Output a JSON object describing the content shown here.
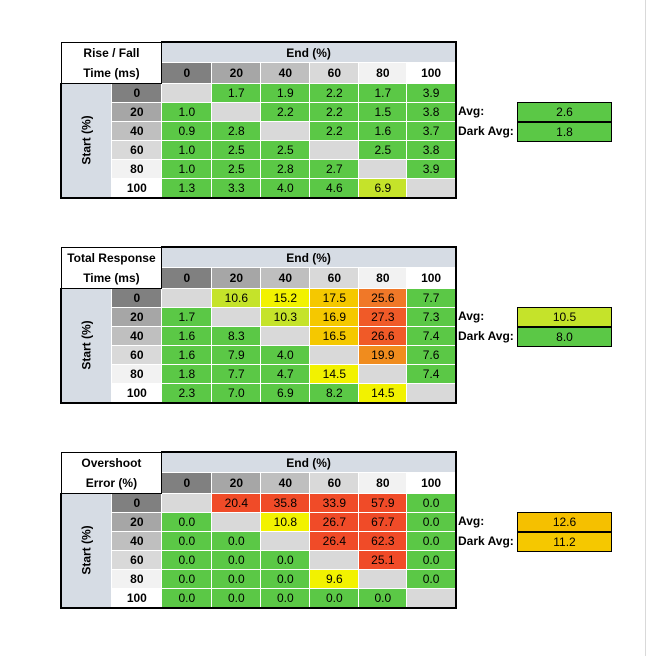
{
  "tables": [
    {
      "title_lines": [
        "Rise / Fall",
        "Time (ms)"
      ],
      "end_label": "End (%)",
      "start_label": "Start (%)",
      "columns": [
        "0",
        "20",
        "40",
        "60",
        "80",
        "100"
      ],
      "rows": [
        {
          "label": "0",
          "cells": [
            "",
            "1.7",
            "1.9",
            "2.2",
            "1.7",
            "3.9"
          ]
        },
        {
          "label": "20",
          "cells": [
            "1.0",
            "",
            "2.2",
            "2.2",
            "1.5",
            "3.8"
          ]
        },
        {
          "label": "40",
          "cells": [
            "0.9",
            "2.8",
            "",
            "2.2",
            "1.6",
            "3.7"
          ]
        },
        {
          "label": "60",
          "cells": [
            "1.0",
            "2.5",
            "2.5",
            "",
            "2.5",
            "3.8"
          ]
        },
        {
          "label": "80",
          "cells": [
            "1.0",
            "2.5",
            "2.8",
            "2.7",
            "",
            "3.9"
          ]
        },
        {
          "label": "100",
          "cells": [
            "1.3",
            "3.3",
            "4.0",
            "4.6",
            "6.9",
            ""
          ]
        }
      ],
      "cell_colors": [
        [
          "#d9d9d9",
          "#5bc846",
          "#5bc846",
          "#5bc846",
          "#5bc846",
          "#5bc846"
        ],
        [
          "#5bc846",
          "#d9d9d9",
          "#5bc846",
          "#5bc846",
          "#5bc846",
          "#5bc846"
        ],
        [
          "#5bc846",
          "#5bc846",
          "#d9d9d9",
          "#5bc846",
          "#5bc846",
          "#5bc846"
        ],
        [
          "#5bc846",
          "#5bc846",
          "#5bc846",
          "#d9d9d9",
          "#5bc846",
          "#5bc846"
        ],
        [
          "#5bc846",
          "#5bc846",
          "#5bc846",
          "#5bc846",
          "#d9d9d9",
          "#5bc846"
        ],
        [
          "#5bc846",
          "#5bc846",
          "#5bc846",
          "#5bc846",
          "#c5e32a",
          "#d9d9d9"
        ]
      ],
      "avg_label": "Avg:",
      "avg_value": "2.6",
      "avg_color": "#5bc846",
      "dark_avg_label": "Dark Avg:",
      "dark_avg_value": "1.8",
      "dark_avg_color": "#5bc846"
    },
    {
      "title_lines": [
        "Total Response",
        "Time (ms)"
      ],
      "end_label": "End (%)",
      "start_label": "Start (%)",
      "columns": [
        "0",
        "20",
        "40",
        "60",
        "80",
        "100"
      ],
      "rows": [
        {
          "label": "0",
          "cells": [
            "",
            "10.6",
            "15.2",
            "17.5",
            "25.6",
            "7.7"
          ]
        },
        {
          "label": "20",
          "cells": [
            "1.7",
            "",
            "10.3",
            "16.9",
            "27.3",
            "7.3"
          ]
        },
        {
          "label": "40",
          "cells": [
            "1.6",
            "8.3",
            "",
            "16.5",
            "26.6",
            "7.4"
          ]
        },
        {
          "label": "60",
          "cells": [
            "1.6",
            "7.9",
            "4.0",
            "",
            "19.9",
            "7.6"
          ]
        },
        {
          "label": "80",
          "cells": [
            "1.8",
            "7.7",
            "4.7",
            "14.5",
            "",
            "7.4"
          ]
        },
        {
          "label": "100",
          "cells": [
            "2.3",
            "7.0",
            "6.9",
            "8.2",
            "14.5",
            ""
          ]
        }
      ],
      "cell_colors": [
        [
          "#d9d9d9",
          "#c5e32a",
          "#f2f200",
          "#f5c800",
          "#f07828",
          "#5bc846"
        ],
        [
          "#5bc846",
          "#d9d9d9",
          "#c5e32a",
          "#f5c800",
          "#f05a28",
          "#5bc846"
        ],
        [
          "#5bc846",
          "#5bc846",
          "#d9d9d9",
          "#f5c800",
          "#f05a28",
          "#5bc846"
        ],
        [
          "#5bc846",
          "#5bc846",
          "#5bc846",
          "#d9d9d9",
          "#f08c1e",
          "#5bc846"
        ],
        [
          "#5bc846",
          "#5bc846",
          "#5bc846",
          "#f2f200",
          "#d9d9d9",
          "#5bc846"
        ],
        [
          "#5bc846",
          "#5bc846",
          "#5bc846",
          "#5bc846",
          "#f2f200",
          "#d9d9d9"
        ]
      ],
      "avg_label": "Avg:",
      "avg_value": "10.5",
      "avg_color": "#c5e32a",
      "dark_avg_label": "Dark Avg:",
      "dark_avg_value": "8.0",
      "dark_avg_color": "#5bc846"
    },
    {
      "title_lines": [
        "Overshoot",
        "Error (%)"
      ],
      "end_label": "End (%)",
      "start_label": "Start (%)",
      "columns": [
        "0",
        "20",
        "40",
        "60",
        "80",
        "100"
      ],
      "rows": [
        {
          "label": "0",
          "cells": [
            "",
            "20.4",
            "35.8",
            "33.9",
            "57.9",
            "0.0"
          ]
        },
        {
          "label": "20",
          "cells": [
            "0.0",
            "",
            "10.8",
            "26.7",
            "67.7",
            "0.0"
          ]
        },
        {
          "label": "40",
          "cells": [
            "0.0",
            "0.0",
            "",
            "26.4",
            "62.3",
            "0.0"
          ]
        },
        {
          "label": "60",
          "cells": [
            "0.0",
            "0.0",
            "0.0",
            "",
            "25.1",
            "0.0"
          ]
        },
        {
          "label": "80",
          "cells": [
            "0.0",
            "0.0",
            "0.0",
            "9.6",
            "",
            "0.0"
          ]
        },
        {
          "label": "100",
          "cells": [
            "0.0",
            "0.0",
            "0.0",
            "0.0",
            "0.0",
            ""
          ]
        }
      ],
      "cell_colors": [
        [
          "#d9d9d9",
          "#f04b28",
          "#f04b28",
          "#f04b28",
          "#f04b28",
          "#5bc846"
        ],
        [
          "#5bc846",
          "#d9d9d9",
          "#f2f200",
          "#f04b28",
          "#f04b28",
          "#5bc846"
        ],
        [
          "#5bc846",
          "#5bc846",
          "#d9d9d9",
          "#f04b28",
          "#f04b28",
          "#5bc846"
        ],
        [
          "#5bc846",
          "#5bc846",
          "#5bc846",
          "#d9d9d9",
          "#f04b28",
          "#5bc846"
        ],
        [
          "#5bc846",
          "#5bc846",
          "#5bc846",
          "#f2f200",
          "#d9d9d9",
          "#5bc846"
        ],
        [
          "#5bc846",
          "#5bc846",
          "#5bc846",
          "#5bc846",
          "#5bc846",
          "#d9d9d9"
        ]
      ],
      "avg_label": "Avg:",
      "avg_value": "12.6",
      "avg_color": "#f5c000",
      "dark_avg_label": "Dark Avg:",
      "dark_avg_value": "11.2",
      "dark_avg_color": "#f5c800"
    }
  ],
  "header_colors": [
    "#808080",
    "#a6a6a6",
    "#bfbfbf",
    "#d9d9d9",
    "#f2f2f2",
    "#ffffff"
  ]
}
